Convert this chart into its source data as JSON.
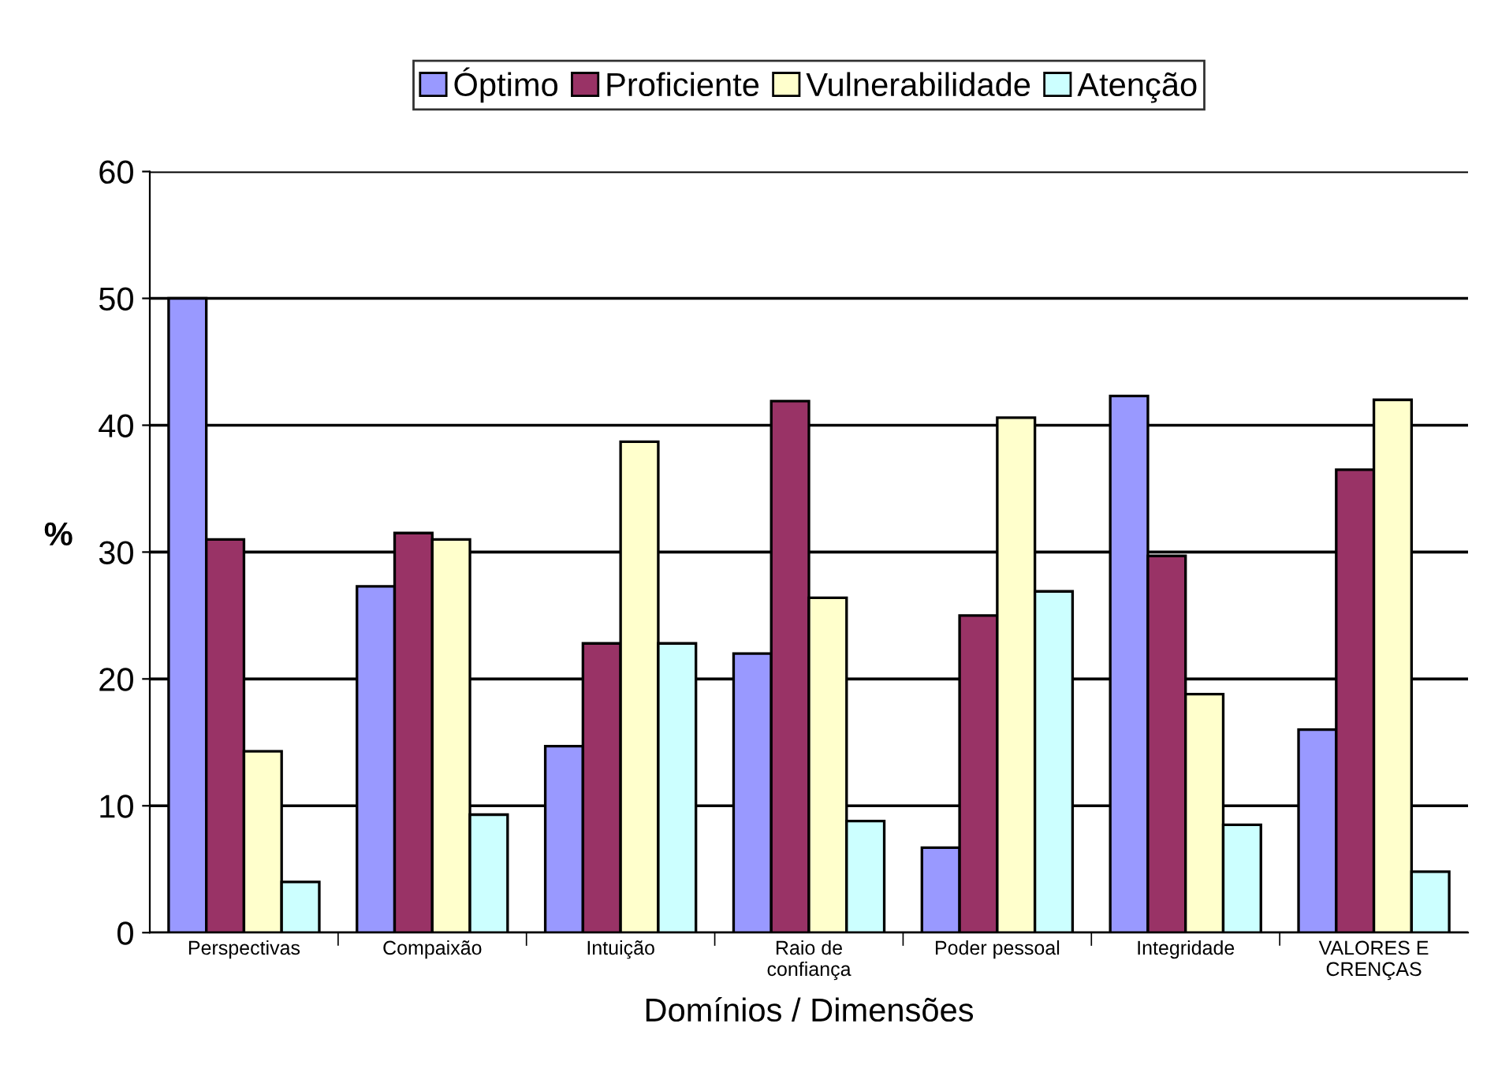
{
  "chart_data": {
    "type": "bar",
    "xlabel": "Domínios / Dimensões",
    "ylabel": "%",
    "categories": [
      "Perspectivas",
      "Compaixão",
      "Intuição",
      "Raio de\nconfiança",
      "Poder pessoal",
      "Integridade",
      "VALORES E\nCRENÇAS"
    ],
    "series": [
      {
        "name": "Óptimo",
        "color": "#9999ff",
        "values": [
          50,
          27.3,
          14.7,
          22,
          6.7,
          42.3,
          16
        ]
      },
      {
        "name": "Proficiente",
        "color": "#993366",
        "values": [
          31,
          31.5,
          22.8,
          41.9,
          25,
          29.7,
          36.5
        ]
      },
      {
        "name": "Vulnerabilidade",
        "color": "#ffffcc",
        "values": [
          14.3,
          31,
          38.7,
          26.4,
          40.6,
          18.8,
          42
        ]
      },
      {
        "name": "Atenção",
        "color": "#ccffff",
        "values": [
          4,
          9.3,
          22.8,
          8.8,
          26.9,
          8.5,
          4.8
        ]
      }
    ],
    "ylim": [
      0,
      60
    ],
    "yticks": [
      0,
      10,
      20,
      30,
      40,
      50,
      60
    ],
    "grid": "y",
    "legend": "top"
  }
}
